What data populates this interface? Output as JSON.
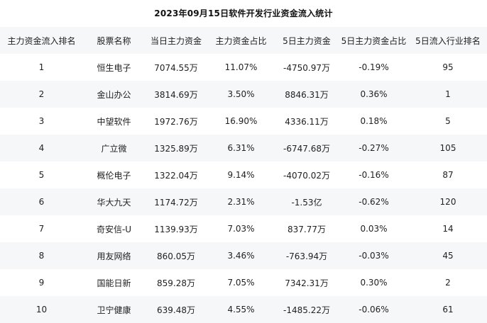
{
  "title": "2023年09月15日软件开发行业资金流入统计",
  "headers": [
    "主力资金流入排名",
    "股票名称",
    "当日主力资金",
    "主力资金占比",
    "5日主力资金",
    "5日主力资金占比",
    "5日流入行业排名"
  ],
  "rows": [
    [
      "1",
      "恒生电子",
      "7074.55万",
      "11.07%",
      "-4750.97万",
      "-0.19%",
      "95"
    ],
    [
      "2",
      "金山办公",
      "3814.69万",
      "3.50%",
      "8846.31万",
      "0.36%",
      "1"
    ],
    [
      "3",
      "中望软件",
      "1972.76万",
      "16.90%",
      "4336.11万",
      "0.18%",
      "5"
    ],
    [
      "4",
      "广立微",
      "1325.89万",
      "6.31%",
      "-6747.68万",
      "-0.27%",
      "105"
    ],
    [
      "5",
      "概伦电子",
      "1322.04万",
      "9.14%",
      "-4070.02万",
      "-0.16%",
      "87"
    ],
    [
      "6",
      "华大九天",
      "1174.72万",
      "2.31%",
      "-1.53亿",
      "-0.62%",
      "120"
    ],
    [
      "7",
      "奇安信-U",
      "1139.93万",
      "7.03%",
      "837.77万",
      "0.03%",
      "14"
    ],
    [
      "8",
      "用友网络",
      "860.05万",
      "3.46%",
      "-763.94万",
      "-0.03%",
      "45"
    ],
    [
      "9",
      "国能日新",
      "859.28万",
      "7.05%",
      "7342.31万",
      "0.30%",
      "2"
    ],
    [
      "10",
      "卫宁健康",
      "639.48万",
      "4.55%",
      "-1485.22万",
      "-0.06%",
      "61"
    ]
  ]
}
